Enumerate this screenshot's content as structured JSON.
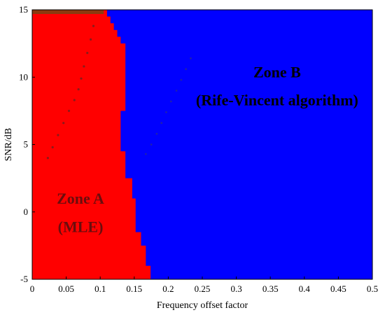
{
  "chart_data": {
    "type": "heatmap",
    "title": "",
    "xlabel": "Frequency offset factor",
    "ylabel": "SNR/dB",
    "xlim": [
      0,
      0.5
    ],
    "ylim": [
      -5,
      15
    ],
    "xticks": [
      "0",
      "0.05",
      "0.1",
      "0.15",
      "0.2",
      "0.25",
      "0.3",
      "0.35",
      "0.4",
      "0.45",
      "0.5"
    ],
    "yticks": [
      "-5",
      "0",
      "5",
      "10",
      "15"
    ],
    "xtick_values": [
      0,
      0.05,
      0.1,
      0.15,
      0.2,
      0.25,
      0.3,
      0.35,
      0.4,
      0.45,
      0.5
    ],
    "ytick_values": [
      -5,
      0,
      5,
      10,
      15
    ],
    "colors": {
      "zone_a": "#ff0000",
      "zone_b": "#0000ff",
      "top_edge": "#8b3a0f"
    },
    "zone_a_boundary": [
      {
        "snr": -5,
        "x": 0.174
      },
      {
        "snr": -4,
        "x": 0.174
      },
      {
        "snr": -4,
        "x": 0.167
      },
      {
        "snr": -2.5,
        "x": 0.167
      },
      {
        "snr": -2.5,
        "x": 0.16
      },
      {
        "snr": -1.5,
        "x": 0.16
      },
      {
        "snr": -1.5,
        "x": 0.152
      },
      {
        "snr": 1,
        "x": 0.152
      },
      {
        "snr": 1,
        "x": 0.147
      },
      {
        "snr": 2.5,
        "x": 0.147
      },
      {
        "snr": 2.5,
        "x": 0.137
      },
      {
        "snr": 4.5,
        "x": 0.137
      },
      {
        "snr": 4.5,
        "x": 0.13
      },
      {
        "snr": 7.5,
        "x": 0.13
      },
      {
        "snr": 7.5,
        "x": 0.137
      },
      {
        "snr": 12.5,
        "x": 0.137
      },
      {
        "snr": 12.5,
        "x": 0.13
      },
      {
        "snr": 13,
        "x": 0.13
      },
      {
        "snr": 13,
        "x": 0.125
      },
      {
        "snr": 13.5,
        "x": 0.125
      },
      {
        "snr": 13.5,
        "x": 0.12
      },
      {
        "snr": 14,
        "x": 0.12
      },
      {
        "snr": 14,
        "x": 0.115
      },
      {
        "snr": 14.5,
        "x": 0.115
      },
      {
        "snr": 14.5,
        "x": 0.11
      },
      {
        "snr": 15,
        "x": 0.11
      }
    ],
    "zone_a_dots": [
      {
        "x": 0.023,
        "y": 4.0
      },
      {
        "x": 0.03,
        "y": 4.8
      },
      {
        "x": 0.038,
        "y": 5.7
      },
      {
        "x": 0.046,
        "y": 6.6
      },
      {
        "x": 0.054,
        "y": 7.5
      },
      {
        "x": 0.062,
        "y": 8.3
      },
      {
        "x": 0.068,
        "y": 9.1
      },
      {
        "x": 0.072,
        "y": 9.9
      },
      {
        "x": 0.076,
        "y": 10.8
      },
      {
        "x": 0.081,
        "y": 11.8
      },
      {
        "x": 0.086,
        "y": 12.8
      },
      {
        "x": 0.09,
        "y": 13.8
      }
    ],
    "zone_b_dots": [
      {
        "x": 0.167,
        "y": 4.3
      },
      {
        "x": 0.175,
        "y": 5.0
      },
      {
        "x": 0.183,
        "y": 5.8
      },
      {
        "x": 0.19,
        "y": 6.6
      },
      {
        "x": 0.197,
        "y": 7.4
      },
      {
        "x": 0.204,
        "y": 8.2
      },
      {
        "x": 0.212,
        "y": 9.0
      },
      {
        "x": 0.219,
        "y": 9.8
      },
      {
        "x": 0.226,
        "y": 10.6
      },
      {
        "x": 0.233,
        "y": 11.4
      }
    ],
    "annotations": [
      {
        "id": "zone-b-title",
        "text": "Zone B",
        "x": 0.36,
        "y": 10.0
      },
      {
        "id": "zone-b-subtitle",
        "text": "(Rife-Vincent algorithm)",
        "x": 0.36,
        "y": 7.9
      },
      {
        "id": "zone-a-title",
        "text": "Zone A",
        "x": 0.071,
        "y": 0.6
      },
      {
        "id": "zone-a-subtitle",
        "text": "(MLE)",
        "x": 0.071,
        "y": -1.5
      }
    ]
  }
}
